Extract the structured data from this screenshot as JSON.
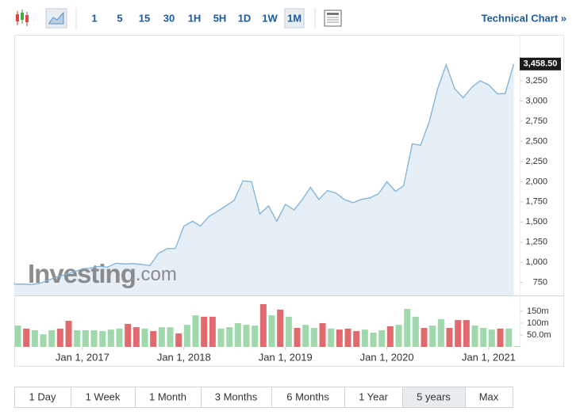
{
  "toolbar": {
    "intervals": [
      "1",
      "5",
      "15",
      "30",
      "1H",
      "5H",
      "1D",
      "1W",
      "1M"
    ],
    "active_interval": 8,
    "link": "Technical Chart »"
  },
  "chart_data": [
    {
      "type": "area",
      "color": "#7fb2d8",
      "fill": "#e6eef6",
      "watermark": [
        "Investing",
        ".com"
      ],
      "x": [
        "2016-05-01",
        "2016-06-01",
        "2016-07-01",
        "2016-08-01",
        "2016-09-01",
        "2016-10-01",
        "2016-11-01",
        "2016-12-01",
        "2017-01-01",
        "2017-02-01",
        "2017-03-01",
        "2017-04-01",
        "2017-05-01",
        "2017-06-01",
        "2017-07-01",
        "2017-08-01",
        "2017-09-01",
        "2017-10-01",
        "2017-11-01",
        "2017-12-01",
        "2018-01-01",
        "2018-02-01",
        "2018-03-01",
        "2018-04-01",
        "2018-05-01",
        "2018-06-01",
        "2018-07-01",
        "2018-08-01",
        "2018-09-01",
        "2018-10-01",
        "2018-11-01",
        "2018-12-01",
        "2019-01-01",
        "2019-02-01",
        "2019-03-01",
        "2019-04-01",
        "2019-05-01",
        "2019-06-01",
        "2019-07-01",
        "2019-08-01",
        "2019-09-01",
        "2019-10-01",
        "2019-11-01",
        "2019-12-01",
        "2020-01-01",
        "2020-02-01",
        "2020-03-01",
        "2020-04-01",
        "2020-05-01",
        "2020-06-01",
        "2020-07-01",
        "2020-08-01",
        "2020-09-01",
        "2020-10-01",
        "2020-11-01",
        "2020-12-01",
        "2021-01-01",
        "2021-02-01",
        "2021-03-01",
        "2021-04-01"
      ],
      "values": [
        730,
        730,
        725,
        740,
        780,
        820,
        850,
        880,
        920,
        930,
        950,
        940,
        990,
        980,
        985,
        975,
        960,
        1110,
        1170,
        1170,
        1450,
        1510,
        1450,
        1570,
        1630,
        1700,
        1770,
        2010,
        2000,
        1600,
        1700,
        1510,
        1720,
        1650,
        1770,
        1930,
        1780,
        1890,
        1860,
        1780,
        1740,
        1780,
        1800,
        1850,
        2000,
        1880,
        1950,
        2470,
        2450,
        2740,
        3150,
        3450,
        3150,
        3040,
        3170,
        3250,
        3200,
        3090,
        3090,
        3458.5
      ],
      "last_value_label": "3,458.50",
      "xlim": [
        "2016-05-01",
        "2021-05-01"
      ],
      "ylim": [
        590,
        3810
      ],
      "yticks": [
        {
          "value": 750,
          "label": "750"
        },
        {
          "value": 1000,
          "label": "1,000"
        },
        {
          "value": 1250,
          "label": "1,250"
        },
        {
          "value": 1500,
          "label": "1,500"
        },
        {
          "value": 1750,
          "label": "1,750"
        },
        {
          "value": 2000,
          "label": "2,000"
        },
        {
          "value": 2250,
          "label": "2,250"
        },
        {
          "value": 2500,
          "label": "2,500"
        },
        {
          "value": 2750,
          "label": "2,750"
        },
        {
          "value": 3000,
          "label": "3,000"
        },
        {
          "value": 3250,
          "label": "3,250"
        }
      ]
    },
    {
      "type": "bar",
      "values": [
        90,
        77,
        70,
        53,
        70,
        77,
        110,
        70,
        70,
        70,
        67,
        73,
        77,
        97,
        83,
        77,
        67,
        83,
        83,
        57,
        93,
        133,
        127,
        127,
        77,
        83,
        100,
        93,
        90,
        180,
        133,
        157,
        127,
        80,
        93,
        80,
        100,
        77,
        73,
        77,
        67,
        73,
        60,
        70,
        87,
        93,
        160,
        127,
        80,
        90,
        117,
        80,
        113,
        113,
        90,
        80,
        73,
        77,
        77,
        3
      ],
      "colors": [
        "#9fd8ab",
        "#e06a6d",
        "#9fd8ab",
        "#9fd8ab",
        "#9fd8ab",
        "#e06a6d",
        "#e06a6d",
        "#9fd8ab",
        "#9fd8ab",
        "#9fd8ab",
        "#9fd8ab",
        "#9fd8ab",
        "#9fd8ab",
        "#e06a6d",
        "#e06a6d",
        "#9fd8ab",
        "#e06a6d",
        "#9fd8ab",
        "#9fd8ab",
        "#e06a6d",
        "#9fd8ab",
        "#9fd8ab",
        "#e06a6d",
        "#e06a6d",
        "#9fd8ab",
        "#9fd8ab",
        "#9fd8ab",
        "#9fd8ab",
        "#9fd8ab",
        "#e06a6d",
        "#9fd8ab",
        "#e06a6d",
        "#9fd8ab",
        "#e06a6d",
        "#9fd8ab",
        "#9fd8ab",
        "#e06a6d",
        "#9fd8ab",
        "#e06a6d",
        "#e06a6d",
        "#e06a6d",
        "#9fd8ab",
        "#9fd8ab",
        "#9fd8ab",
        "#e06a6d",
        "#9fd8ab",
        "#9fd8ab",
        "#9fd8ab",
        "#e06a6d",
        "#9fd8ab",
        "#9fd8ab",
        "#e06a6d",
        "#e06a6d",
        "#e06a6d",
        "#9fd8ab",
        "#9fd8ab",
        "#9fd8ab",
        "#e06a6d",
        "#9fd8ab",
        "#9fd8ab"
      ],
      "ylim": [
        0,
        200
      ],
      "yticks": [
        {
          "value": 50,
          "label": "50.0m"
        },
        {
          "value": 100,
          "label": "100m"
        },
        {
          "value": 150,
          "label": "150m"
        }
      ],
      "xticks": [
        {
          "value": "2017-01-01",
          "label": "Jan 1, 2017"
        },
        {
          "value": "2018-01-01",
          "label": "Jan 1, 2018"
        },
        {
          "value": "2019-01-01",
          "label": "Jan 1, 2019"
        },
        {
          "value": "2020-01-01",
          "label": "Jan 1, 2020"
        },
        {
          "value": "2021-01-01",
          "label": "Jan 1, 2021"
        }
      ]
    }
  ],
  "range_selector": {
    "ranges": [
      "1 Day",
      "1 Week",
      "1 Month",
      "3 Months",
      "6 Months",
      "1 Year",
      "5 years",
      "Max"
    ],
    "active_range": 6
  }
}
